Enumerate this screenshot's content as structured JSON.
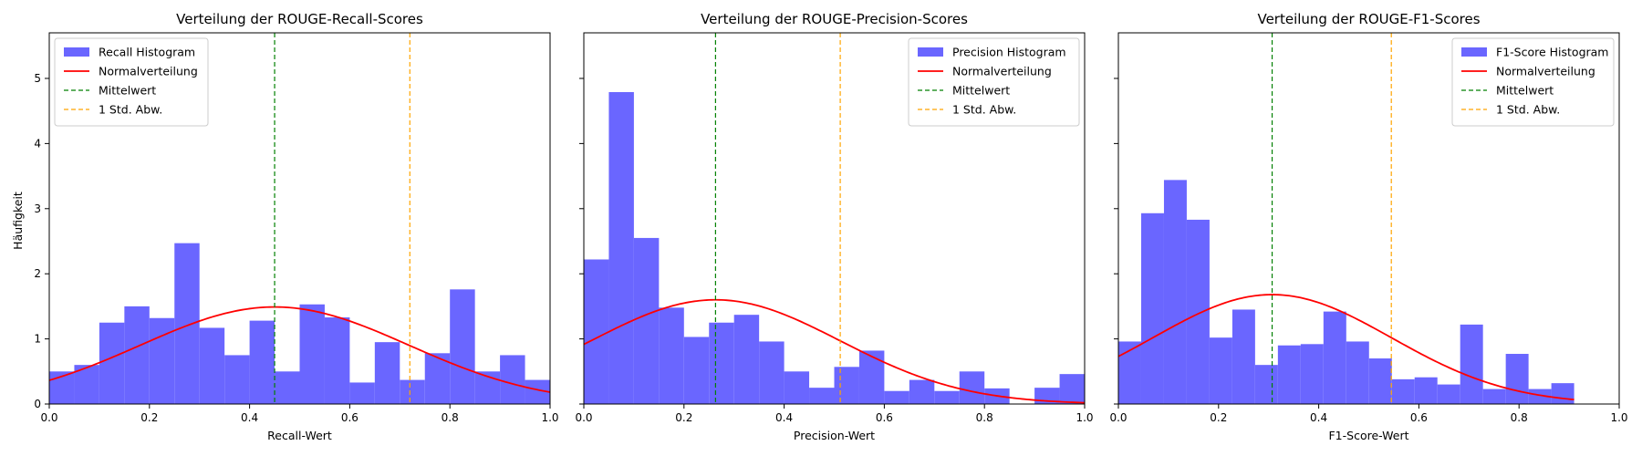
{
  "figure": {
    "shared_ylabel": "Häufigkeit",
    "yticks": [
      0,
      1,
      2,
      3,
      4,
      5
    ],
    "xticks": [
      0.0,
      0.2,
      0.4,
      0.6,
      0.8,
      1.0
    ],
    "xtick_labels": [
      "0.0",
      "0.2",
      "0.4",
      "0.6",
      "0.8",
      "1.0"
    ],
    "ylim": [
      0,
      5.7
    ]
  },
  "colors": {
    "hist": "#6a66ff",
    "normal": "#ff0000",
    "mean": "#008000",
    "std": "#ffa500"
  },
  "chart_data": [
    {
      "type": "bar",
      "title": "Verteilung der ROUGE-Recall-Scores",
      "xlabel": "Recall-Wert",
      "ylabel": "Häufigkeit",
      "xlim": [
        0,
        1.0
      ],
      "ylim": [
        0,
        5.7
      ],
      "bin_edges": [
        0.0,
        0.05,
        0.1,
        0.15,
        0.2,
        0.25,
        0.3,
        0.35,
        0.4,
        0.45,
        0.5,
        0.55,
        0.6,
        0.65,
        0.7,
        0.75,
        0.8,
        0.85,
        0.9,
        0.95,
        1.0
      ],
      "values": [
        0.5,
        0.6,
        1.25,
        1.5,
        1.32,
        2.47,
        1.17,
        0.75,
        1.28,
        0.5,
        1.53,
        1.33,
        0.33,
        0.95,
        0.37,
        0.78,
        1.76,
        0.5,
        0.75,
        0.37
      ],
      "mean": 0.45,
      "std_line": 0.72,
      "normal_peak": 1.49,
      "normal_sd": 0.268,
      "legend": [
        "Recall Histogram",
        "Normalverteilung",
        "Mittelwert",
        "1 Std. Abw."
      ],
      "legend_position": "top-left"
    },
    {
      "type": "bar",
      "title": "Verteilung der ROUGE-Precision-Scores",
      "xlabel": "Precision-Wert",
      "ylabel": "",
      "xlim": [
        0,
        1.0
      ],
      "ylim": [
        0,
        5.7
      ],
      "bin_edges": [
        0.0,
        0.05,
        0.1,
        0.15,
        0.2,
        0.25,
        0.3,
        0.35,
        0.4,
        0.45,
        0.5,
        0.55,
        0.6,
        0.65,
        0.7,
        0.75,
        0.8,
        0.85,
        0.9,
        0.95,
        1.0
      ],
      "values": [
        2.22,
        4.79,
        2.55,
        1.48,
        1.03,
        1.25,
        1.37,
        0.96,
        0.5,
        0.25,
        0.57,
        0.82,
        0.2,
        0.37,
        0.2,
        0.5,
        0.24,
        0.0,
        0.25,
        0.46
      ],
      "mean": 0.263,
      "std_line": 0.512,
      "normal_peak": 1.6,
      "normal_sd": 0.249,
      "legend": [
        "Precision Histogram",
        "Normalverteilung",
        "Mittelwert",
        "1 Std. Abw."
      ],
      "legend_position": "top-right"
    },
    {
      "type": "bar",
      "title": "Verteilung der ROUGE-F1-Scores",
      "xlabel": "F1-Score-Wert",
      "ylabel": "",
      "xlim": [
        0,
        1.0
      ],
      "ylim": [
        0,
        5.7
      ],
      "bin_edges": [
        0.0,
        0.0455,
        0.091,
        0.1365,
        0.182,
        0.2275,
        0.273,
        0.3185,
        0.364,
        0.4095,
        0.455,
        0.5005,
        0.546,
        0.5915,
        0.637,
        0.6825,
        0.728,
        0.7735,
        0.819,
        0.8645,
        0.91
      ],
      "values": [
        0.96,
        2.93,
        3.44,
        2.83,
        1.02,
        1.45,
        0.6,
        0.9,
        0.92,
        1.42,
        0.96,
        0.7,
        0.38,
        0.41,
        0.3,
        1.22,
        0.23,
        0.77,
        0.23,
        0.32
      ],
      "mean": 0.307,
      "std_line": 0.545,
      "normal_peak": 1.68,
      "normal_sd": 0.238,
      "normal_xmax": 0.91,
      "legend": [
        "F1-Score Histogram",
        "Normalverteilung",
        "Mittelwert",
        "1 Std. Abw."
      ],
      "legend_position": "top-right"
    }
  ]
}
